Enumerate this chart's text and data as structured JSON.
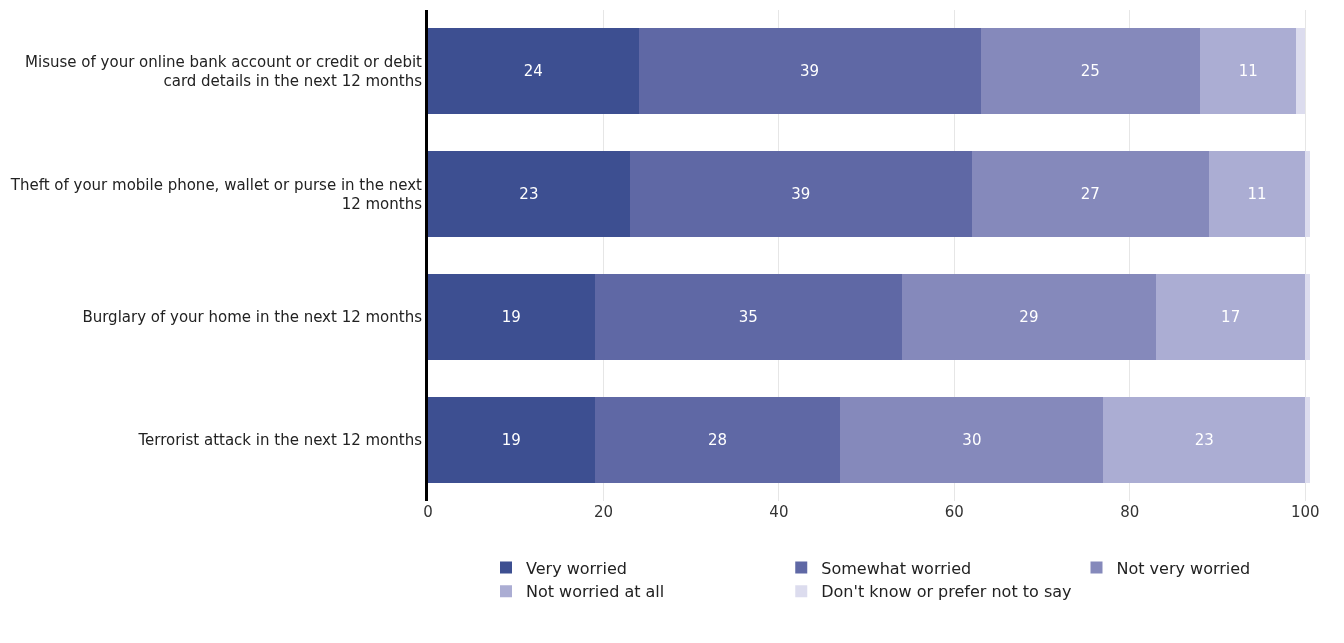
{
  "chart_data": {
    "type": "bar",
    "orientation": "horizontal",
    "stacked": true,
    "categories": [
      "Misuse of your online bank account or credit or debit card details in the next 12 months",
      "Theft of your mobile phone, wallet or purse in the next 12 months",
      "Burglary of your home in the next 12 months",
      "Terrorist attack in the next 12 months"
    ],
    "series": [
      {
        "name": "Very worried",
        "color": "#3d4f91",
        "values": [
          24,
          23,
          19,
          19
        ],
        "value_labels": [
          "24",
          "23",
          "19",
          "19"
        ]
      },
      {
        "name": "Somewhat worried",
        "color": "#5f68a5",
        "values": [
          39,
          39,
          35,
          28
        ],
        "value_labels": [
          "39",
          "39",
          "35",
          "28"
        ]
      },
      {
        "name": "Not very worried",
        "color": "#8589bb",
        "values": [
          25,
          27,
          29,
          30
        ],
        "value_labels": [
          "25",
          "27",
          "29",
          "30"
        ]
      },
      {
        "name": "Not worried at all",
        "color": "#abadd3",
        "values": [
          11,
          11,
          17,
          23
        ],
        "value_labels": [
          "11",
          "11",
          "17",
          "23"
        ]
      },
      {
        "name": "Don't know or prefer not to say",
        "color": "#dcdcee",
        "values": [
          1,
          0.5,
          0.5,
          0.5
        ],
        "value_labels": [
          null,
          null,
          null,
          null
        ]
      }
    ],
    "xlim": [
      0,
      101
    ],
    "xticks": [
      0,
      20,
      40,
      60,
      80,
      100
    ],
    "grid": "x",
    "legend": "bottom"
  }
}
